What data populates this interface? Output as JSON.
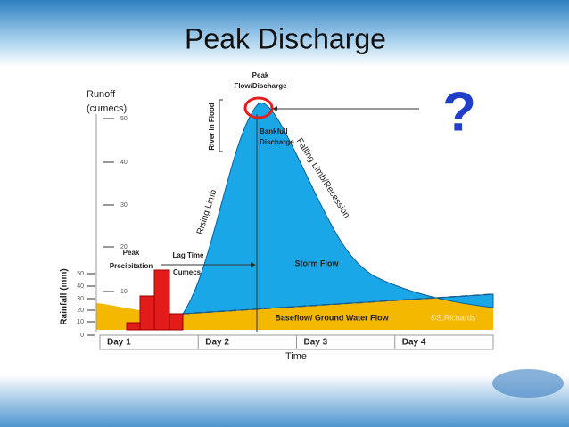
{
  "title": "Peak Discharge",
  "question_mark": "?",
  "runoff_axis": {
    "label_lines": [
      "Runoff",
      "(cumecs)"
    ],
    "ticks": [
      "50",
      "40",
      "30",
      "20",
      "10"
    ]
  },
  "rainfall_axis": {
    "label": "Rainfall (mm)",
    "ticks": [
      "50",
      "40",
      "30",
      "20",
      "10",
      "0"
    ]
  },
  "days": [
    "Day 1",
    "Day 2",
    "Day 3",
    "Day 4"
  ],
  "x_label": "Time",
  "annotations": {
    "peak_discharge": [
      "Peak",
      "Flow/Discharge"
    ],
    "river_in_flood": "River in Flood",
    "bankfull": [
      "Bankfull",
      "Discharge"
    ],
    "falling_limb": "Falling Limb/Recession",
    "rising_limb": "Rising Limb",
    "storm_flow": "Storm Flow",
    "baseflow": "Baseflow/ Ground Water Flow",
    "copyright": "©S.Richards",
    "peak_precipitation": [
      "Peak",
      "Precipitation"
    ],
    "lag_time": "Lag Time",
    "cumecs": "Cumecs"
  }
}
